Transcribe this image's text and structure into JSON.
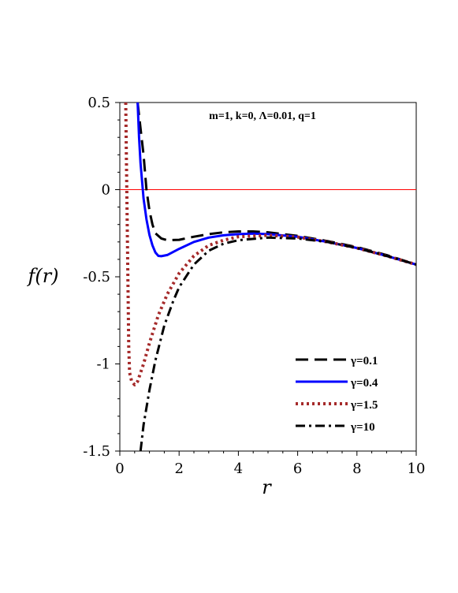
{
  "chart_data": {
    "type": "line",
    "title": "",
    "xlabel": "r",
    "ylabel": "f(r)",
    "xlim": [
      0,
      10
    ],
    "ylim": [
      -1.5,
      0.5
    ],
    "x_ticks": [
      0,
      2,
      4,
      6,
      8,
      10
    ],
    "x_tick_labels": [
      "0",
      "2",
      "4",
      "6",
      "8",
      "10"
    ],
    "y_ticks": [
      0.5,
      0,
      -0.5,
      -1,
      -1.5
    ],
    "y_tick_labels": [
      "0.5",
      "0",
      "-0.5",
      "-1",
      "-1.5"
    ],
    "annotation": "m=1, k=0, Λ=0.01, q=1",
    "legend_position": "bottom-right",
    "reference_line": {
      "y": 0,
      "color": "#ff0000"
    },
    "series": [
      {
        "name": "γ=0.1",
        "color": "#000000",
        "style": "dash",
        "points": [
          [
            0.6,
            0.5
          ],
          [
            0.7,
            0.35
          ],
          [
            0.8,
            0.2
          ],
          [
            0.9,
            0.0
          ],
          [
            1.0,
            -0.12
          ],
          [
            1.1,
            -0.2
          ],
          [
            1.2,
            -0.25
          ],
          [
            1.4,
            -0.28
          ],
          [
            1.6,
            -0.29
          ],
          [
            2.0,
            -0.288
          ],
          [
            2.5,
            -0.27
          ],
          [
            3.0,
            -0.255
          ],
          [
            3.5,
            -0.245
          ],
          [
            4.0,
            -0.24
          ],
          [
            4.5,
            -0.24
          ],
          [
            5.0,
            -0.245
          ],
          [
            6.0,
            -0.265
          ],
          [
            7.0,
            -0.295
          ],
          [
            8.0,
            -0.33
          ],
          [
            9.0,
            -0.375
          ],
          [
            10.0,
            -0.43
          ]
        ]
      },
      {
        "name": "γ=0.4",
        "color": "#0000ff",
        "style": "solid",
        "points": [
          [
            0.6,
            0.5
          ],
          [
            0.65,
            0.3
          ],
          [
            0.7,
            0.15
          ],
          [
            0.75,
            0.05
          ],
          [
            0.8,
            -0.05
          ],
          [
            0.9,
            -0.17
          ],
          [
            1.0,
            -0.26
          ],
          [
            1.1,
            -0.32
          ],
          [
            1.2,
            -0.36
          ],
          [
            1.3,
            -0.38
          ],
          [
            1.4,
            -0.382
          ],
          [
            1.6,
            -0.375
          ],
          [
            2.0,
            -0.34
          ],
          [
            2.5,
            -0.3
          ],
          [
            3.0,
            -0.275
          ],
          [
            3.5,
            -0.262
          ],
          [
            4.0,
            -0.255
          ],
          [
            4.5,
            -0.252
          ],
          [
            5.0,
            -0.255
          ],
          [
            6.0,
            -0.27
          ],
          [
            7.0,
            -0.3
          ],
          [
            8.0,
            -0.335
          ],
          [
            9.0,
            -0.38
          ],
          [
            10.0,
            -0.43
          ]
        ]
      },
      {
        "name": "γ=1.5",
        "color": "#a52a2a",
        "style": "dot",
        "points": [
          [
            0.2,
            0.5
          ],
          [
            0.22,
            0.2
          ],
          [
            0.25,
            -0.2
          ],
          [
            0.28,
            -0.6
          ],
          [
            0.3,
            -0.9
          ],
          [
            0.33,
            -1.05
          ],
          [
            0.4,
            -1.1
          ],
          [
            0.5,
            -1.12
          ],
          [
            0.6,
            -1.1
          ],
          [
            0.8,
            -1.0
          ],
          [
            1.0,
            -0.88
          ],
          [
            1.3,
            -0.72
          ],
          [
            1.6,
            -0.6
          ],
          [
            2.0,
            -0.48
          ],
          [
            2.5,
            -0.38
          ],
          [
            3.0,
            -0.32
          ],
          [
            3.5,
            -0.29
          ],
          [
            4.0,
            -0.27
          ],
          [
            5.0,
            -0.262
          ],
          [
            6.0,
            -0.272
          ],
          [
            7.0,
            -0.3
          ],
          [
            8.0,
            -0.335
          ],
          [
            9.0,
            -0.38
          ],
          [
            10.0,
            -0.43
          ]
        ]
      },
      {
        "name": "γ=10",
        "color": "#000000",
        "style": "dashdot",
        "points": [
          [
            0.7,
            -1.5
          ],
          [
            0.8,
            -1.35
          ],
          [
            1.0,
            -1.15
          ],
          [
            1.2,
            -0.98
          ],
          [
            1.5,
            -0.78
          ],
          [
            1.8,
            -0.64
          ],
          [
            2.0,
            -0.56
          ],
          [
            2.5,
            -0.43
          ],
          [
            3.0,
            -0.35
          ],
          [
            3.5,
            -0.31
          ],
          [
            4.0,
            -0.29
          ],
          [
            5.0,
            -0.275
          ],
          [
            6.0,
            -0.28
          ],
          [
            7.0,
            -0.3
          ],
          [
            8.0,
            -0.335
          ],
          [
            9.0,
            -0.38
          ],
          [
            10.0,
            -0.43
          ]
        ]
      }
    ]
  }
}
